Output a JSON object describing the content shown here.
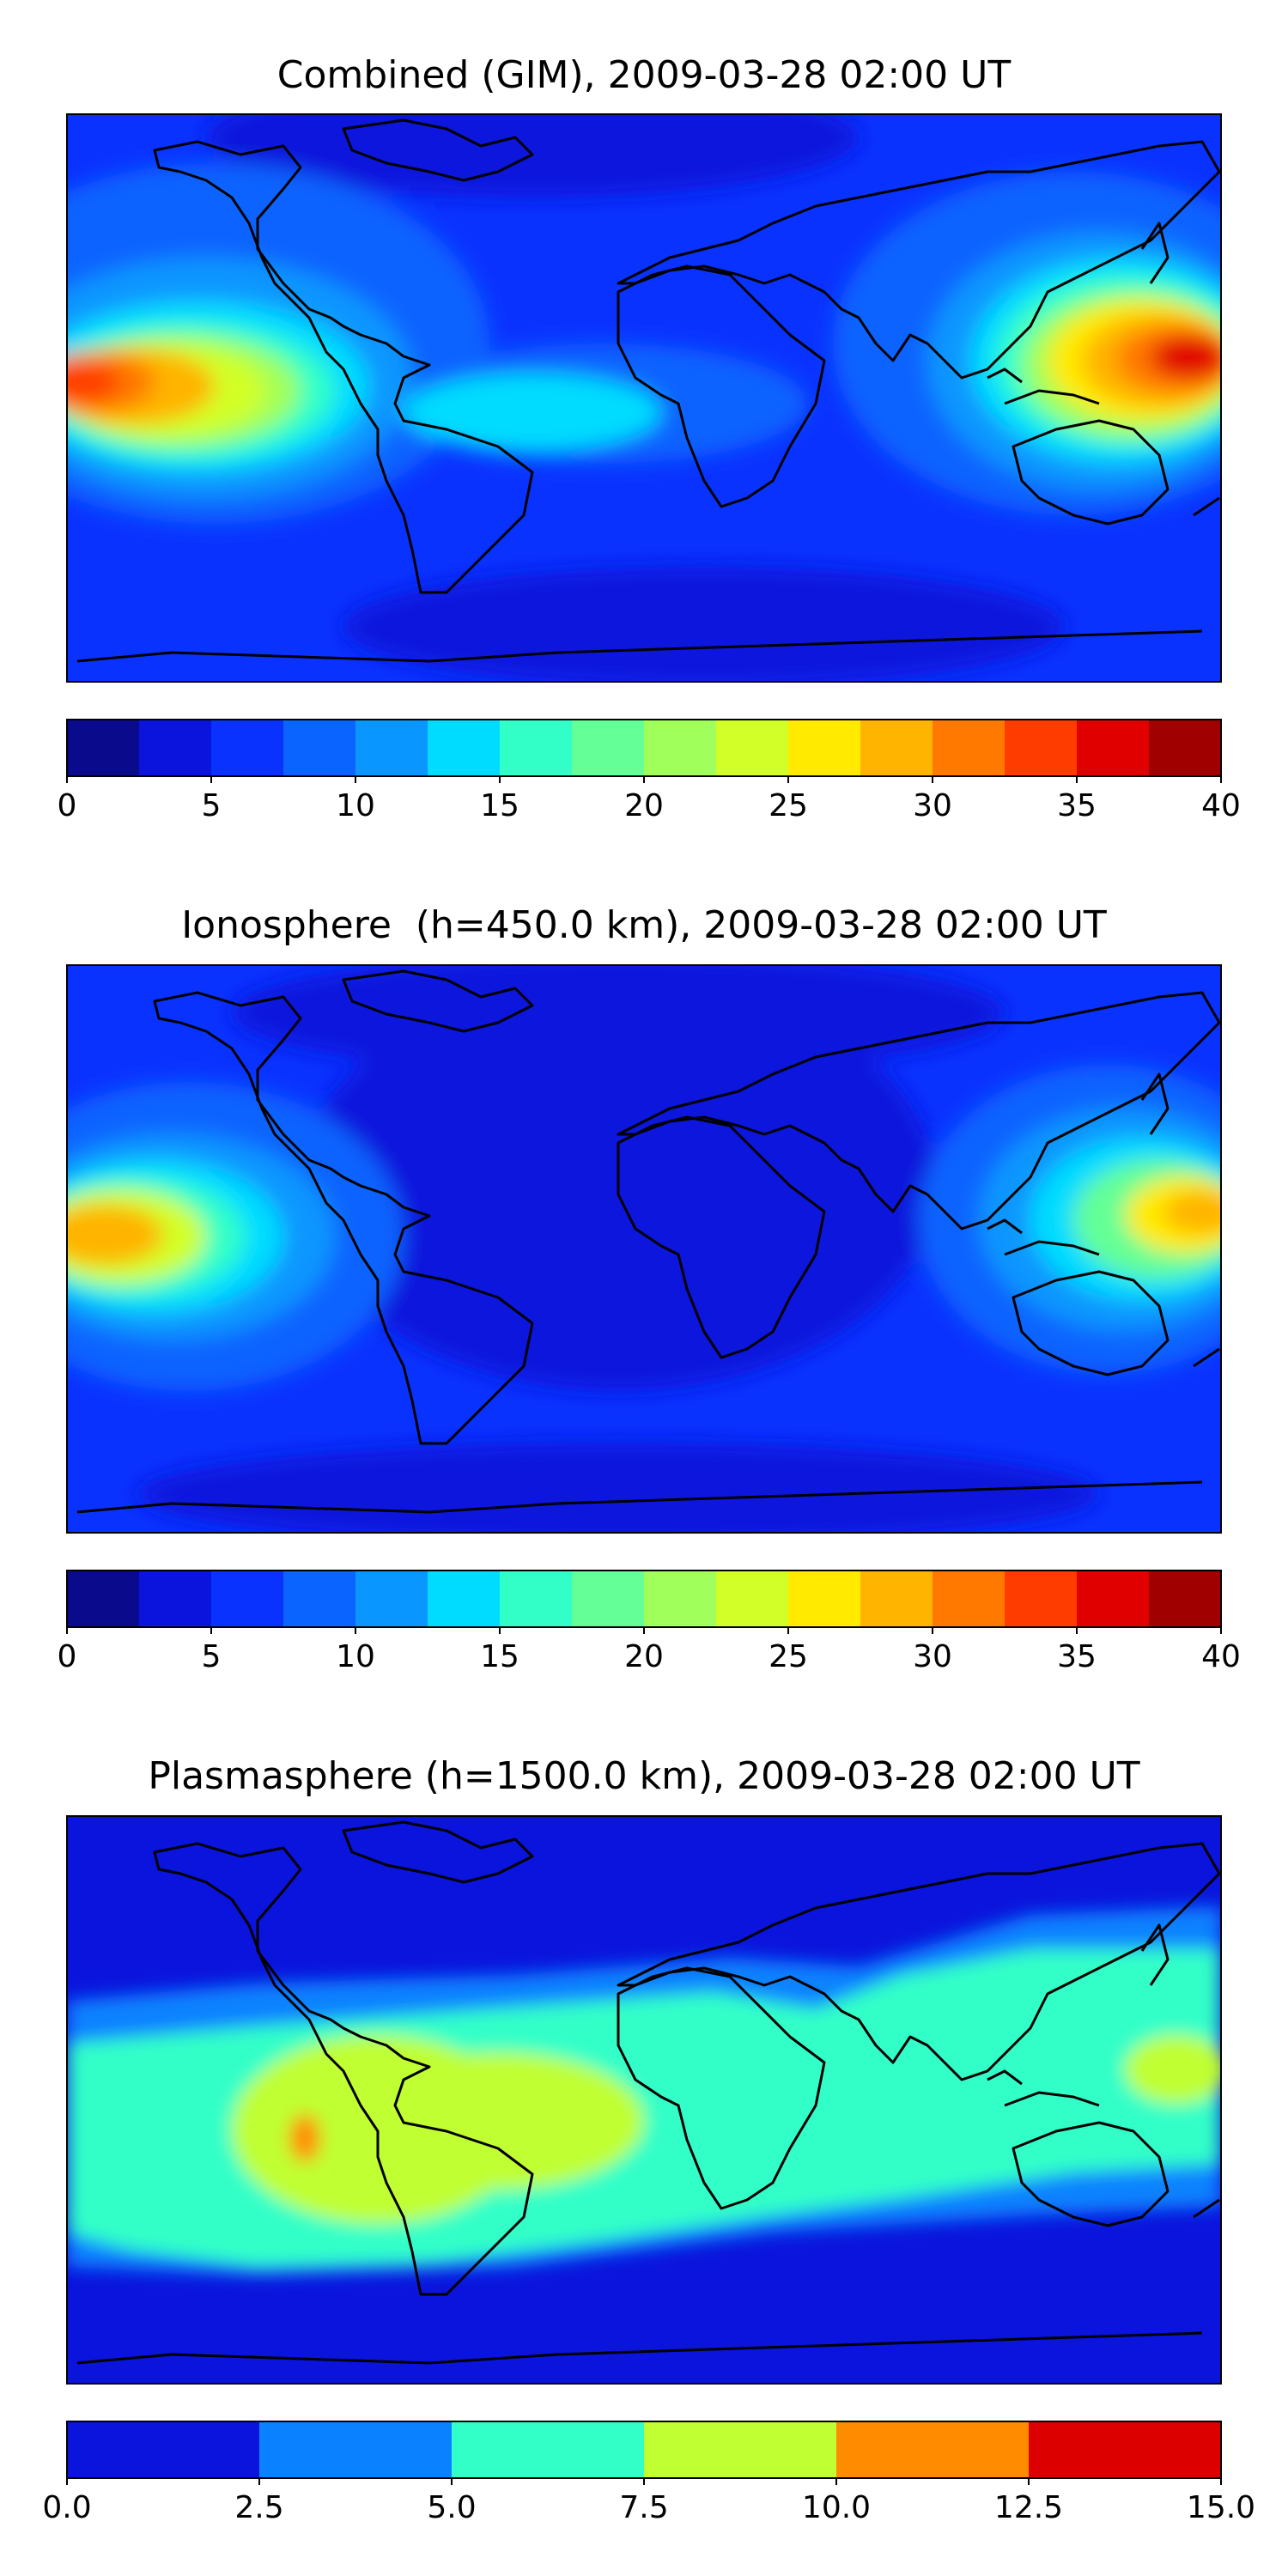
{
  "panels": [
    {
      "title": "Combined (GIM), 2009-03-28 02:00 UT",
      "colorbar": {
        "vmin": 0,
        "vmax": 40,
        "colors": [
          "#0a0a8c",
          "#0a14dc",
          "#0a32ff",
          "#0a64ff",
          "#0a96ff",
          "#00dcff",
          "#32ffc8",
          "#64ff96",
          "#a0ff5a",
          "#d2ff28",
          "#ffea00",
          "#ffb400",
          "#ff7800",
          "#ff3c00",
          "#e10000",
          "#a00000"
        ],
        "tick_values": [
          0,
          5,
          10,
          15,
          20,
          25,
          30,
          35,
          40
        ],
        "tick_labels": [
          "0",
          "5",
          "10",
          "15",
          "20",
          "25",
          "30",
          "35",
          "40"
        ]
      }
    },
    {
      "title": "Ionosphere  (h=450.0 km), 2009-03-28 02:00 UT",
      "colorbar": {
        "vmin": 0,
        "vmax": 40,
        "colors": [
          "#0a0a8c",
          "#0a14dc",
          "#0a32ff",
          "#0a64ff",
          "#0a96ff",
          "#00dcff",
          "#32ffc8",
          "#64ff96",
          "#a0ff5a",
          "#d2ff28",
          "#ffea00",
          "#ffb400",
          "#ff7800",
          "#ff3c00",
          "#e10000",
          "#a00000"
        ],
        "tick_values": [
          0,
          5,
          10,
          15,
          20,
          25,
          30,
          35,
          40
        ],
        "tick_labels": [
          "0",
          "5",
          "10",
          "15",
          "20",
          "25",
          "30",
          "35",
          "40"
        ]
      }
    },
    {
      "title": "Plasmasphere (h=1500.0 km), 2009-03-28 02:00 UT",
      "colorbar": {
        "vmin": 0,
        "vmax": 15,
        "colors": [
          "#0a14dc",
          "#0a82ff",
          "#32ffc8",
          "#c0ff32",
          "#ff8c00",
          "#dc0000"
        ],
        "tick_values": [
          0,
          2.5,
          5,
          7.5,
          10,
          12.5,
          15
        ],
        "tick_labels": [
          "0.0",
          "2.5",
          "5.0",
          "7.5",
          "10.0",
          "12.5",
          "15.0"
        ]
      }
    }
  ]
}
